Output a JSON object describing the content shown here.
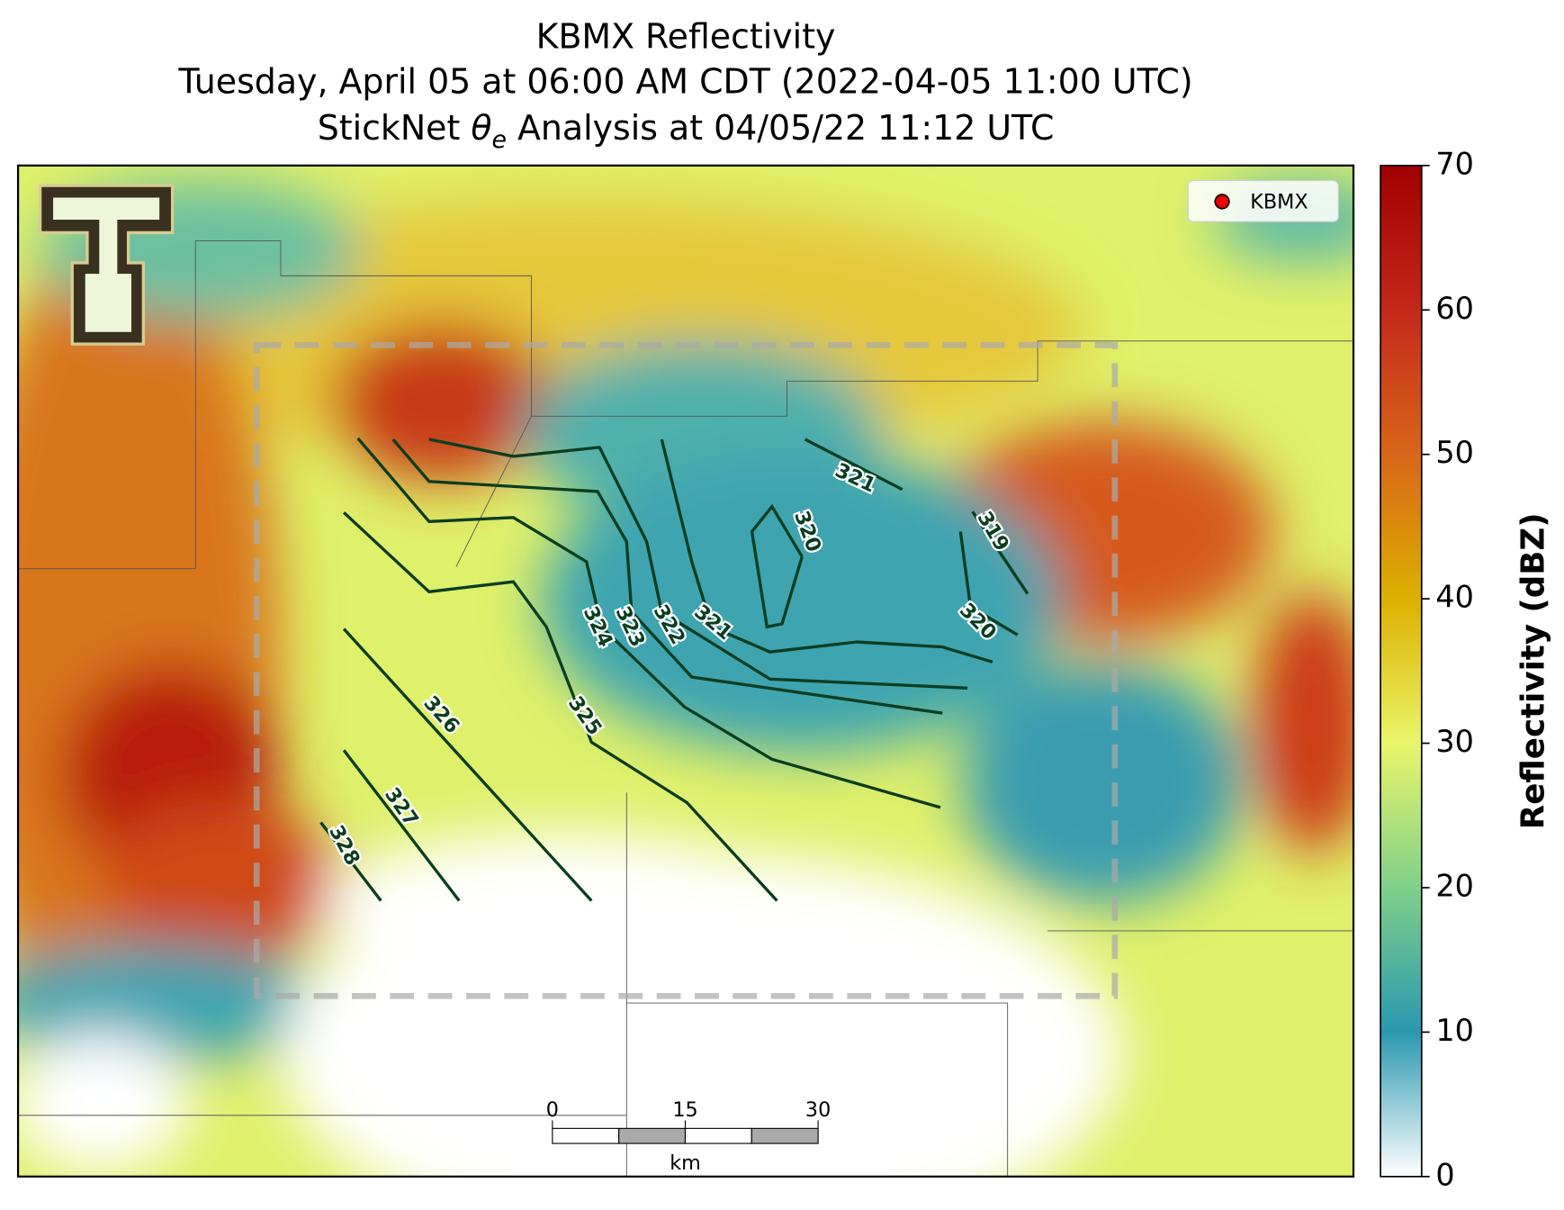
{
  "title": [
    "KBMX Reflectivity",
    "Tuesday, April 05 at 06:00 AM CDT (2022-04-05 11:00 UTC)"
  ],
  "subtitle": {
    "prefix": "StickNet",
    "symbol": "θ",
    "subscript": "e",
    "suffix": "Analysis at 04/05/22 11:12 UTC"
  },
  "legend": "KBMX",
  "colorbar": {
    "label": "Reflectivity (dBZ)",
    "lim": [
      0,
      70
    ],
    "ticks": [
      0,
      10,
      20,
      30,
      40,
      50,
      60,
      70
    ]
  },
  "contours": [
    328,
    327,
    326,
    325,
    324,
    323,
    322,
    321,
    321,
    320,
    320,
    319
  ],
  "scale_bar": {
    "ticks": [
      0,
      15,
      30
    ],
    "unit": "km"
  }
}
